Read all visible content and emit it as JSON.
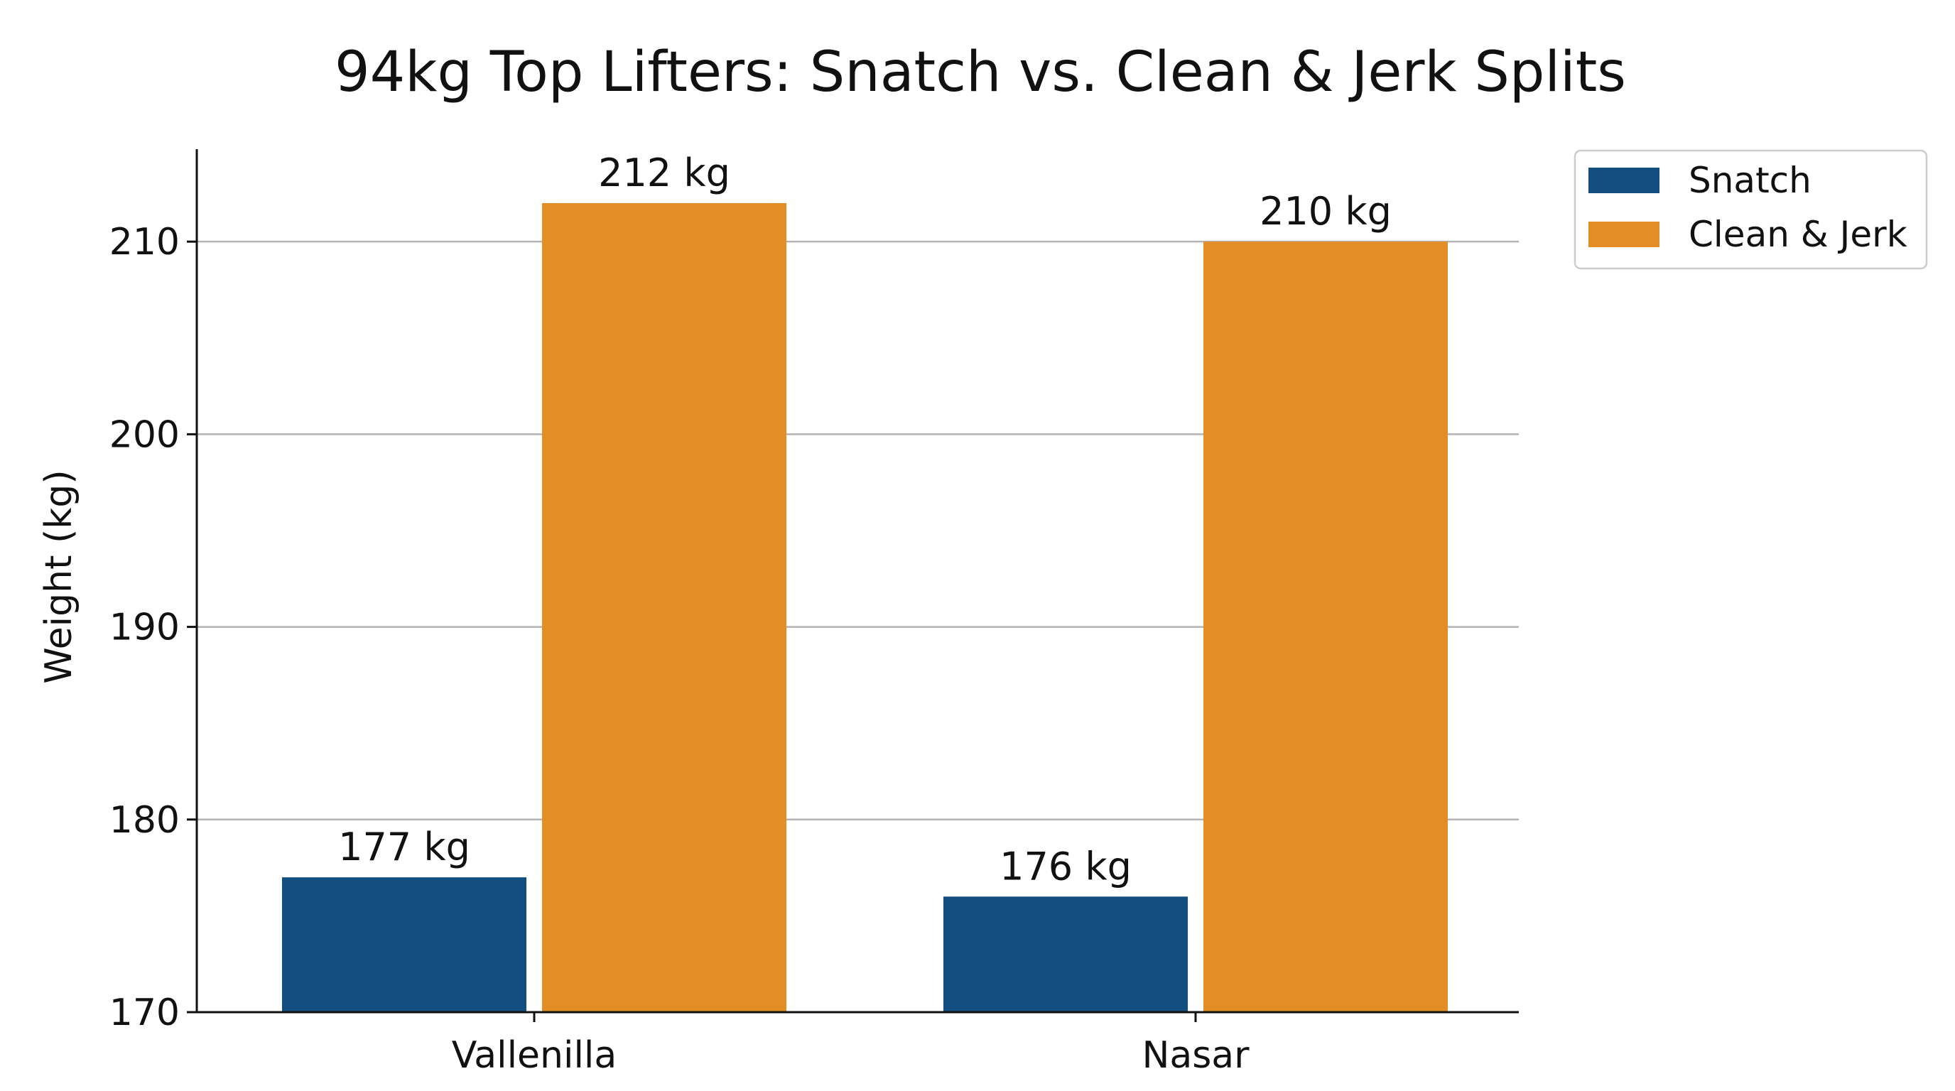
{
  "chart_data": {
    "type": "bar",
    "title": "94kg Top Lifters: Snatch vs. Clean & Jerk Splits",
    "xlabel": "",
    "ylabel": "Weight (kg)",
    "categories": [
      "Vallenilla",
      "Nasar"
    ],
    "series": [
      {
        "name": "Snatch",
        "values": [
          177,
          176
        ],
        "labels": [
          "177 kg",
          "176 kg"
        ],
        "color": "#124f80"
      },
      {
        "name": "Clean & Jerk",
        "values": [
          212,
          210
        ],
        "labels": [
          "212 kg",
          "210 kg"
        ],
        "color": "#e28e25"
      }
    ],
    "ylim": [
      170,
      214.8
    ],
    "yticks": [
      170,
      180,
      190,
      200,
      210
    ],
    "ytick_labels": [
      "170",
      "180",
      "190",
      "200",
      "210"
    ],
    "grid": "horizontal",
    "legend_position": "outside-top-right"
  }
}
